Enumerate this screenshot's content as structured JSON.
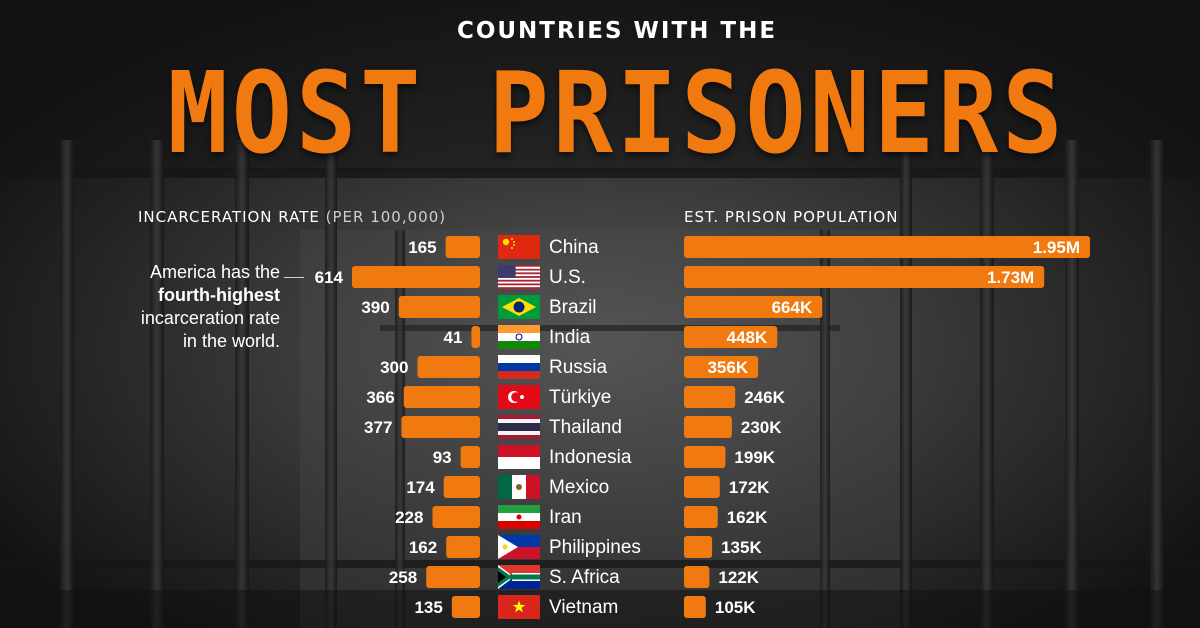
{
  "header": {
    "subtitle": "COUNTRIES WITH THE",
    "title": "MOST PRISONERS"
  },
  "left_axis_title": {
    "main": "INCARCERATION RATE",
    "muted": "(PER 100,000)"
  },
  "right_axis_title": "EST. PRISON POPULATION",
  "annotation": {
    "line1": "America has the",
    "bold": "fourth-highest",
    "line3": "incarceration rate",
    "line4": "in the world."
  },
  "colors": {
    "bar": "#f07a10",
    "text": "#ffffff",
    "background": "#1c1c1c"
  },
  "chart_data": [
    {
      "type": "bar",
      "orientation": "horizontal-left",
      "title": "INCARCERATION RATE (PER 100,000)",
      "categories": [
        "China",
        "U.S.",
        "Brazil",
        "India",
        "Russia",
        "Türkiye",
        "Thailand",
        "Indonesia",
        "Mexico",
        "Iran",
        "Philippines",
        "S. Africa",
        "Vietnam"
      ],
      "values": [
        165,
        614,
        390,
        41,
        300,
        366,
        377,
        93,
        174,
        228,
        162,
        258,
        135
      ],
      "labels": [
        "165",
        "614",
        "390",
        "41",
        "300",
        "366",
        "377",
        "93",
        "174",
        "228",
        "162",
        "258",
        "135"
      ]
    },
    {
      "type": "bar",
      "orientation": "horizontal-right",
      "title": "EST. PRISON POPULATION",
      "categories": [
        "China",
        "U.S.",
        "Brazil",
        "India",
        "Russia",
        "Türkiye",
        "Thailand",
        "Indonesia",
        "Mexico",
        "Iran",
        "Philippines",
        "S. Africa",
        "Vietnam"
      ],
      "values": [
        1950000,
        1730000,
        664000,
        448000,
        356000,
        246000,
        230000,
        199000,
        172000,
        162000,
        135000,
        122000,
        105000
      ],
      "labels": [
        "1.95M",
        "1.73M",
        "664K",
        "448K",
        "356K",
        "246K",
        "230K",
        "199K",
        "172K",
        "162K",
        "135K",
        "122K",
        "105K"
      ]
    }
  ],
  "flags": [
    "china-flag-icon",
    "us-flag-icon",
    "brazil-flag-icon",
    "india-flag-icon",
    "russia-flag-icon",
    "turkiye-flag-icon",
    "thailand-flag-icon",
    "indonesia-flag-icon",
    "mexico-flag-icon",
    "iran-flag-icon",
    "philippines-flag-icon",
    "south-africa-flag-icon",
    "vietnam-flag-icon"
  ]
}
